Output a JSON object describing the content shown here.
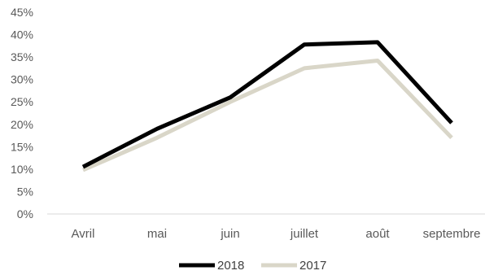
{
  "chart_data": {
    "type": "line",
    "categories": [
      "Avril",
      "mai",
      "juin",
      "juillet",
      "août",
      "septembre"
    ],
    "series": [
      {
        "name": "2018",
        "values": [
          0.105,
          0.19,
          0.26,
          0.378,
          0.383,
          0.203
        ],
        "color": "#000000"
      },
      {
        "name": "2017",
        "values": [
          0.098,
          0.17,
          0.25,
          0.325,
          0.342,
          0.17
        ],
        "color": "#d9d6c8"
      }
    ],
    "y_ticks": [
      "0%",
      "5%",
      "10%",
      "15%",
      "20%",
      "25%",
      "30%",
      "35%",
      "40%",
      "45%"
    ],
    "ylim": [
      0,
      0.45
    ],
    "grid": false,
    "legend_position": "bottom"
  }
}
